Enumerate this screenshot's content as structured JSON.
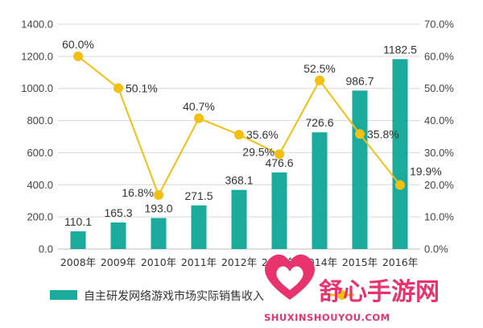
{
  "chart_data": {
    "type": "bar",
    "categories": [
      "2008年",
      "2009年",
      "2010年",
      "2011年",
      "2012年",
      "2013年",
      "2014年",
      "2015年",
      "2016年"
    ],
    "series": [
      {
        "name": "自主研发网络游戏市场实际销售收入",
        "type": "bar",
        "axis": "left",
        "values": [
          110.1,
          165.3,
          193.0,
          271.5,
          368.1,
          476.6,
          726.6,
          986.7,
          1182.5
        ],
        "labels": [
          "110.1",
          "165.3",
          "193.0",
          "271.5",
          "368.1",
          "476.6",
          "726.6",
          "986.7",
          "1182.5"
        ],
        "color": "#1aab9c"
      },
      {
        "name": "",
        "type": "line",
        "axis": "right",
        "values": [
          60.0,
          50.1,
          16.8,
          40.7,
          35.6,
          29.5,
          52.5,
          35.8,
          19.9
        ],
        "labels": [
          "60.0%",
          "50.1%",
          "16.8%",
          "40.7%",
          "35.6%",
          "29.5%",
          "52.5%",
          "35.8%",
          "19.9%"
        ],
        "color": "#f2c010"
      }
    ],
    "y_left": {
      "min": 0,
      "max": 1400,
      "ticks": [
        "0.0",
        "200.0",
        "400.0",
        "600.0",
        "800.0",
        "1000.0",
        "1200.0",
        "1400.0"
      ]
    },
    "y_right": {
      "min": 0,
      "max": 70,
      "ticks": [
        "0.0%",
        "10.0%",
        "20.0%",
        "30.0%",
        "40.0%",
        "50.0%",
        "60.0%",
        "70.0%"
      ]
    },
    "grid": "horizontal",
    "legend": "bottom",
    "legend_entries": [
      "自主研发网络游戏市场实际销售收入"
    ]
  },
  "watermark": {
    "text": "舒心手游网",
    "subtext": "SHUXINSHOUYOU.COM",
    "color": "#e8336e"
  }
}
